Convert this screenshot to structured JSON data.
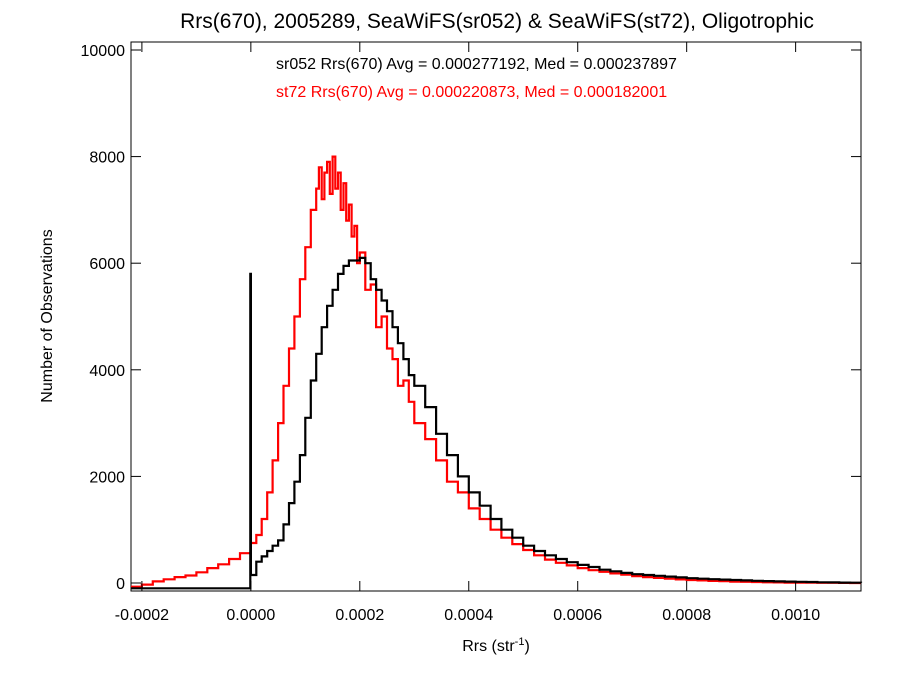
{
  "chart_data": {
    "type": "line",
    "subtype": "step-histogram",
    "title": "Rrs(670), 2005289, SeaWiFS(sr052) & SeaWiFS(st72), Oligotrophic",
    "xlabel_main": "Rrs (str",
    "xlabel_sup": "-1",
    "xlabel_close": ")",
    "ylabel": "Number of Observations",
    "xlim": [
      -0.00022,
      0.00112
    ],
    "ylim": [
      -150,
      10150
    ],
    "grid": false,
    "legend": "top-center",
    "x_ticks": [
      {
        "value": -0.0002,
        "label": "-0.0002"
      },
      {
        "value": 0.0,
        "label": "0.0000"
      },
      {
        "value": 0.0002,
        "label": "0.0002"
      },
      {
        "value": 0.0004,
        "label": "0.0004"
      },
      {
        "value": 0.0006,
        "label": "0.0006"
      },
      {
        "value": 0.0008,
        "label": "0.0008"
      },
      {
        "value": 0.001,
        "label": "0.0010"
      }
    ],
    "y_ticks": [
      {
        "value": 0,
        "label": "0"
      },
      {
        "value": 2000,
        "label": "2000"
      },
      {
        "value": 4000,
        "label": "4000"
      },
      {
        "value": 6000,
        "label": "6000"
      },
      {
        "value": 8000,
        "label": "8000"
      },
      {
        "value": 10000,
        "label": "10000"
      }
    ],
    "annotations": [
      {
        "text": "sr052 Rrs(670) Avg = 0.000277192, Med = 0.000237897",
        "color": "#000000"
      },
      {
        "text": "st72 Rrs(670) Avg = 0.000220873, Med = 0.000182001",
        "color": "#ff0000"
      }
    ],
    "series": [
      {
        "color": "#000000",
        "x": [
          -0.00022,
          -0.0002,
          -0.00018,
          -0.00016,
          -0.00014,
          -0.00012,
          -0.0001,
          -8e-05,
          -6e-05,
          -4e-05,
          -2e-05,
          -5e-06,
          -1e-06,
          0.0,
          1e-05,
          2e-05,
          3e-05,
          4e-05,
          5e-05,
          6e-05,
          7e-05,
          8e-05,
          9e-05,
          0.0001,
          0.00011,
          0.00012,
          0.00013,
          0.00014,
          0.00015,
          0.00016,
          0.00017,
          0.00018,
          0.00019,
          0.0002,
          0.00021,
          0.00022,
          0.00023,
          0.00024,
          0.00025,
          0.00026,
          0.00027,
          0.00028,
          0.00029,
          0.0003,
          0.00032,
          0.00034,
          0.00036,
          0.00038,
          0.0004,
          0.00042,
          0.00044,
          0.00046,
          0.00048,
          0.0005,
          0.00052,
          0.00054,
          0.00056,
          0.00058,
          0.0006,
          0.00062,
          0.00064,
          0.00066,
          0.00068,
          0.0007,
          0.00072,
          0.00074,
          0.00076,
          0.00078,
          0.0008,
          0.00082,
          0.00084,
          0.00086,
          0.00088,
          0.0009,
          0.00092,
          0.00094,
          0.00096,
          0.00098,
          0.001,
          0.00102,
          0.00104,
          0.00106,
          0.00108,
          0.0011,
          0.00112
        ],
        "y": [
          -100,
          -100,
          -100,
          -100,
          -100,
          -100,
          -100,
          -100,
          -100,
          -100,
          -100,
          -100,
          5800,
          150,
          400,
          500,
          600,
          700,
          800,
          1100,
          1500,
          1900,
          2400,
          3100,
          3800,
          4300,
          4800,
          5200,
          5500,
          5800,
          5950,
          6050,
          6050,
          6100,
          6000,
          5700,
          5500,
          5300,
          5100,
          4800,
          4500,
          4200,
          3900,
          3700,
          3300,
          2800,
          2400,
          2000,
          1700,
          1450,
          1200,
          1000,
          850,
          700,
          600,
          520,
          450,
          390,
          340,
          300,
          250,
          220,
          190,
          165,
          150,
          135,
          120,
          105,
          90,
          80,
          72,
          64,
          56,
          48,
          42,
          36,
          30,
          26,
          22,
          18,
          14,
          11,
          8,
          5,
          3
        ]
      },
      {
        "color": "#ff0000",
        "x": [
          -0.00022,
          -0.0002,
          -0.00018,
          -0.00016,
          -0.00014,
          -0.00012,
          -0.0001,
          -8e-05,
          -6e-05,
          -4e-05,
          -2e-05,
          0.0,
          1e-05,
          2e-05,
          3e-05,
          4e-05,
          5e-05,
          6e-05,
          7e-05,
          8e-05,
          9e-05,
          0.0001,
          0.00011,
          0.00012,
          0.000125,
          0.00013,
          0.000135,
          0.00014,
          0.000145,
          0.00015,
          0.000155,
          0.00016,
          0.000165,
          0.00017,
          0.000175,
          0.00018,
          0.000185,
          0.00019,
          0.000195,
          0.0002,
          0.00021,
          0.00022,
          0.00023,
          0.00024,
          0.00025,
          0.00026,
          0.00027,
          0.00028,
          0.00029,
          0.0003,
          0.00032,
          0.00034,
          0.00036,
          0.00038,
          0.0004,
          0.00042,
          0.00044,
          0.00046,
          0.00048,
          0.0005,
          0.00052,
          0.00054,
          0.00056,
          0.00058,
          0.0006,
          0.00062,
          0.00064,
          0.00066,
          0.00068,
          0.0007,
          0.00072,
          0.00074,
          0.00076,
          0.00078,
          0.0008,
          0.00082,
          0.00084,
          0.00086,
          0.00088,
          0.0009,
          0.00092,
          0.00094,
          0.00096,
          0.00098,
          0.001,
          0.00102,
          0.00104,
          0.00106,
          0.00108,
          0.0011,
          0.00112
        ],
        "y": [
          -70,
          -30,
          30,
          70,
          110,
          140,
          200,
          280,
          350,
          450,
          560,
          750,
          900,
          1200,
          1700,
          2300,
          3000,
          3700,
          4400,
          5000,
          5700,
          6300,
          7000,
          7400,
          7800,
          7200,
          7700,
          7900,
          7300,
          8000,
          7400,
          7700,
          7000,
          7500,
          6800,
          7100,
          6500,
          6700,
          6000,
          6200,
          5500,
          5600,
          4800,
          5000,
          4400,
          4200,
          3700,
          3800,
          3400,
          3000,
          2700,
          2300,
          1900,
          1700,
          1400,
          1200,
          1000,
          850,
          730,
          620,
          520,
          440,
          380,
          330,
          280,
          240,
          210,
          180,
          155,
          130,
          110,
          95,
          80,
          68,
          57,
          48,
          40,
          33,
          27,
          22,
          18,
          14,
          11,
          8,
          6,
          5,
          4,
          3,
          2,
          1,
          0
        ]
      }
    ]
  }
}
